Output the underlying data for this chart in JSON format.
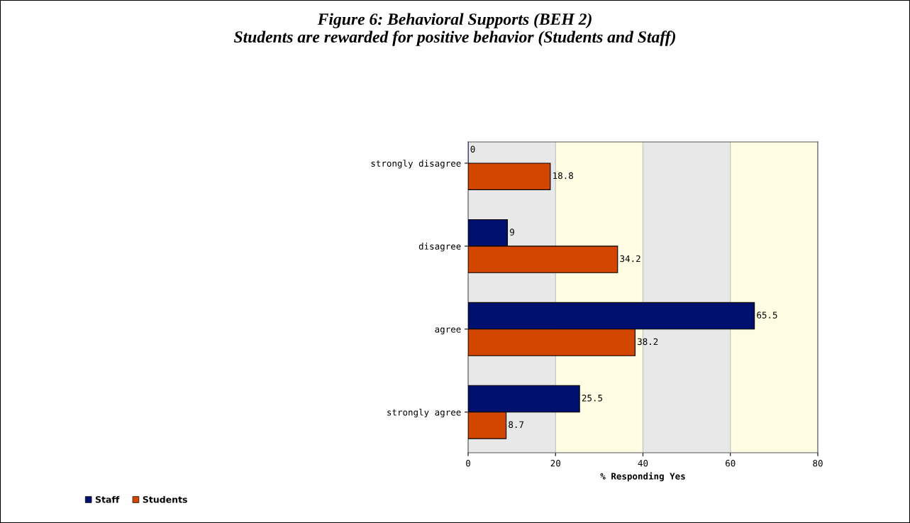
{
  "chart_data": {
    "type": "bar",
    "orientation": "horizontal",
    "title": "Figure 6: Behavioral Supports (BEH 2)\nStudents are rewarded for positive behavior (Students and Staff)",
    "xlabel": "% Responding Yes",
    "categories": [
      "strongly disagree",
      "disagree",
      "agree",
      "strongly agree"
    ],
    "series": [
      {
        "name": "Staff",
        "color": "#00106e",
        "values": [
          0,
          9,
          65.5,
          25.5
        ]
      },
      {
        "name": "Students",
        "color": "#d24600",
        "values": [
          18.8,
          34.2,
          38.2,
          8.7
        ]
      }
    ],
    "xlim": [
      0,
      80
    ],
    "xticks": [
      0,
      20,
      40,
      60,
      80
    ],
    "bands": [
      {
        "axis": "x",
        "from": 0,
        "to": 20,
        "color": "#e8e8e8"
      },
      {
        "axis": "x",
        "from": 20,
        "to": 40,
        "color": "#fffde3"
      },
      {
        "axis": "x",
        "from": 40,
        "to": 60,
        "color": "#e8e8e8"
      },
      {
        "axis": "x",
        "from": 60,
        "to": 80,
        "color": "#fffde3"
      }
    ],
    "grid": "x",
    "data_labels": true,
    "legend": "bottom left"
  }
}
